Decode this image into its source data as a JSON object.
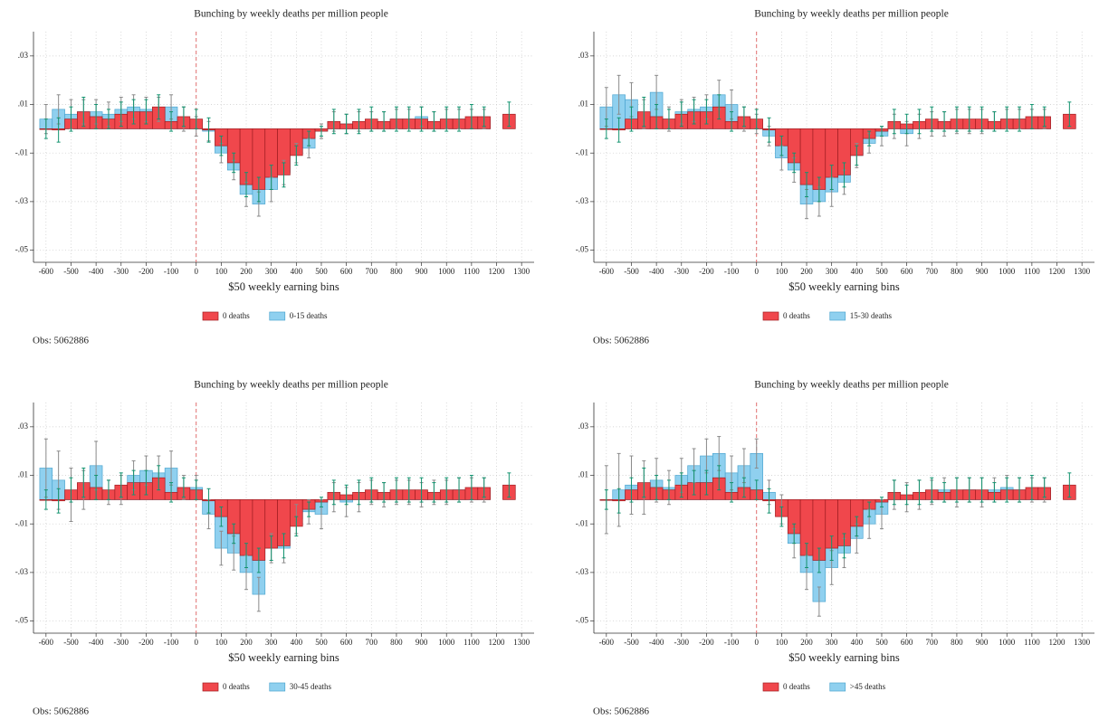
{
  "chart_data": [
    {
      "type": "bar",
      "title": "Bunching by weekly deaths per million people",
      "xlabel": "$50 weekly earning bins",
      "note": "Obs: 5062886",
      "x": [
        -600,
        -550,
        -500,
        -450,
        -400,
        -350,
        -300,
        -250,
        -200,
        -150,
        -100,
        -50,
        0,
        50,
        100,
        150,
        200,
        250,
        300,
        350,
        400,
        450,
        500,
        550,
        600,
        650,
        700,
        750,
        800,
        850,
        900,
        950,
        1000,
        1050,
        1100,
        1150,
        1250
      ],
      "series": [
        {
          "name": "0 deaths",
          "color": "#f0474c",
          "stroke": "#a01e22",
          "error_color": "#12936f",
          "values": [
            0,
            -0.0005,
            0.004,
            0.007,
            0.005,
            0.004,
            0.006,
            0.007,
            0.007,
            0.009,
            0.003,
            0.005,
            0.004,
            -0.0005,
            -0.007,
            -0.014,
            -0.023,
            -0.025,
            -0.02,
            -0.019,
            -0.011,
            -0.004,
            -0.001,
            0.003,
            0.002,
            0.003,
            0.004,
            0.003,
            0.004,
            0.004,
            0.004,
            0.003,
            0.004,
            0.004,
            0.005,
            0.005,
            0.006
          ],
          "errors": [
            0.004,
            0.005,
            0.005,
            0.006,
            0.005,
            0.004,
            0.005,
            0.005,
            0.005,
            0.005,
            0.004,
            0.004,
            0.004,
            0.005,
            0.004,
            0.004,
            0.005,
            0.005,
            0.005,
            0.005,
            0.004,
            0.003,
            0.002,
            0.005,
            0.004,
            0.005,
            0.005,
            0.004,
            0.005,
            0.005,
            0.005,
            0.004,
            0.005,
            0.005,
            0.005,
            0.004,
            0.005
          ]
        },
        {
          "name": "0-15 deaths",
          "color": "#8fd0ef",
          "stroke": "#4ea6d0",
          "error_color": "#8a8a8a",
          "values": [
            0.004,
            0.008,
            0.006,
            0.007,
            0.007,
            0.006,
            0.008,
            0.009,
            0.008,
            0.008,
            0.009,
            0.004,
            0.001,
            -0.001,
            -0.01,
            -0.017,
            -0.027,
            -0.031,
            -0.025,
            -0.018,
            -0.01,
            -0.008,
            -0.001,
            0.003,
            0.002,
            0.003,
            0.003,
            0.003,
            0.004,
            0.004,
            0.005,
            0.003,
            0.004,
            0.004,
            0.004,
            0.004,
            null
          ],
          "errors": [
            0.006,
            0.006,
            0.006,
            0.005,
            0.005,
            0.005,
            0.005,
            0.005,
            0.005,
            0.005,
            0.005,
            0.005,
            0.004,
            0.004,
            0.004,
            0.004,
            0.005,
            0.005,
            0.005,
            0.005,
            0.004,
            0.004,
            0.003,
            0.004,
            0.004,
            0.004,
            0.004,
            0.004,
            0.004,
            0.004,
            0.004,
            0.004,
            0.004,
            0.004,
            0.004,
            0.004,
            null
          ]
        }
      ],
      "xlim": [
        -650,
        1350
      ],
      "ylim": [
        -0.055,
        0.04
      ],
      "xticks": [
        -600,
        -500,
        -400,
        -300,
        -200,
        -100,
        0,
        100,
        200,
        300,
        400,
        500,
        600,
        700,
        800,
        900,
        1000,
        1100,
        1200,
        1300
      ],
      "yticks": [
        {
          "value": 0.03,
          "label": ".03"
        },
        {
          "value": 0.01,
          "label": ".01"
        },
        {
          "value": -0.01,
          "label": "-.01"
        },
        {
          "value": -0.03,
          "label": "-.03"
        },
        {
          "value": -0.05,
          "label": "-.05"
        }
      ],
      "grid": true,
      "reference_line": 0
    },
    {
      "type": "bar",
      "title": "Bunching by weekly deaths per million people",
      "xlabel": "$50 weekly earning bins",
      "note": "Obs: 5062886",
      "x": [
        -600,
        -550,
        -500,
        -450,
        -400,
        -350,
        -300,
        -250,
        -200,
        -150,
        -100,
        -50,
        0,
        50,
        100,
        150,
        200,
        250,
        300,
        350,
        400,
        450,
        500,
        550,
        600,
        650,
        700,
        750,
        800,
        850,
        900,
        950,
        1000,
        1050,
        1100,
        1150,
        1250
      ],
      "series": [
        {
          "name": "0 deaths",
          "color": "#f0474c",
          "stroke": "#a01e22",
          "error_color": "#12936f",
          "values": [
            0,
            -0.0005,
            0.004,
            0.007,
            0.005,
            0.004,
            0.006,
            0.007,
            0.007,
            0.009,
            0.003,
            0.005,
            0.004,
            -0.0005,
            -0.007,
            -0.014,
            -0.023,
            -0.025,
            -0.02,
            -0.019,
            -0.011,
            -0.004,
            -0.001,
            0.003,
            0.002,
            0.003,
            0.004,
            0.003,
            0.004,
            0.004,
            0.004,
            0.003,
            0.004,
            0.004,
            0.005,
            0.005,
            0.006
          ],
          "errors": [
            0.004,
            0.005,
            0.005,
            0.006,
            0.005,
            0.004,
            0.005,
            0.005,
            0.005,
            0.005,
            0.004,
            0.004,
            0.004,
            0.005,
            0.004,
            0.004,
            0.005,
            0.005,
            0.005,
            0.005,
            0.004,
            0.003,
            0.002,
            0.005,
            0.004,
            0.005,
            0.005,
            0.004,
            0.005,
            0.005,
            0.005,
            0.004,
            0.005,
            0.005,
            0.005,
            0.004,
            0.005
          ]
        },
        {
          "name": "15-30 deaths",
          "color": "#8fd0ef",
          "stroke": "#4ea6d0",
          "error_color": "#8a8a8a",
          "values": [
            0.009,
            0.014,
            0.012,
            0.006,
            0.015,
            0.004,
            0.007,
            0.008,
            0.009,
            0.014,
            0.01,
            0.004,
            0.002,
            -0.003,
            -0.012,
            -0.017,
            -0.031,
            -0.03,
            -0.026,
            -0.022,
            -0.011,
            -0.006,
            -0.003,
            0.001,
            -0.002,
            0.001,
            0.002,
            0.002,
            0.003,
            0.003,
            0.003,
            0.003,
            0.004,
            0.004,
            0.004,
            0.004,
            null
          ],
          "errors": [
            0.008,
            0.008,
            0.007,
            0.006,
            0.007,
            0.005,
            0.005,
            0.005,
            0.005,
            0.006,
            0.006,
            0.005,
            0.004,
            0.004,
            0.005,
            0.005,
            0.006,
            0.006,
            0.006,
            0.005,
            0.005,
            0.004,
            0.004,
            0.005,
            0.005,
            0.005,
            0.005,
            0.005,
            0.005,
            0.005,
            0.005,
            0.004,
            0.004,
            0.004,
            0.004,
            0.004,
            null
          ]
        }
      ],
      "xlim": [
        -650,
        1350
      ],
      "ylim": [
        -0.055,
        0.04
      ],
      "xticks": [
        -600,
        -500,
        -400,
        -300,
        -200,
        -100,
        0,
        100,
        200,
        300,
        400,
        500,
        600,
        700,
        800,
        900,
        1000,
        1100,
        1200,
        1300
      ],
      "yticks": [
        {
          "value": 0.03,
          "label": ".03"
        },
        {
          "value": 0.01,
          "label": ".01"
        },
        {
          "value": -0.01,
          "label": "-.01"
        },
        {
          "value": -0.03,
          "label": "-.03"
        },
        {
          "value": -0.05,
          "label": "-.05"
        }
      ],
      "grid": true,
      "reference_line": 0
    },
    {
      "type": "bar",
      "title": "Bunching by weekly deaths per million people",
      "xlabel": "$50 weekly earning bins",
      "note": "Obs: 5062886",
      "x": [
        -600,
        -550,
        -500,
        -450,
        -400,
        -350,
        -300,
        -250,
        -200,
        -150,
        -100,
        -50,
        0,
        50,
        100,
        150,
        200,
        250,
        300,
        350,
        400,
        450,
        500,
        550,
        600,
        650,
        700,
        750,
        800,
        850,
        900,
        950,
        1000,
        1050,
        1100,
        1150,
        1250
      ],
      "series": [
        {
          "name": "0 deaths",
          "color": "#f0474c",
          "stroke": "#a01e22",
          "error_color": "#12936f",
          "values": [
            0,
            -0.0005,
            0.004,
            0.007,
            0.005,
            0.004,
            0.006,
            0.007,
            0.007,
            0.009,
            0.003,
            0.005,
            0.004,
            -0.0005,
            -0.007,
            -0.014,
            -0.023,
            -0.025,
            -0.02,
            -0.019,
            -0.011,
            -0.004,
            -0.001,
            0.003,
            0.002,
            0.003,
            0.004,
            0.003,
            0.004,
            0.004,
            0.004,
            0.003,
            0.004,
            0.004,
            0.005,
            0.005,
            0.006
          ],
          "errors": [
            0.004,
            0.005,
            0.005,
            0.006,
            0.005,
            0.004,
            0.005,
            0.005,
            0.005,
            0.005,
            0.004,
            0.004,
            0.004,
            0.005,
            0.004,
            0.004,
            0.005,
            0.005,
            0.005,
            0.005,
            0.004,
            0.003,
            0.002,
            0.005,
            0.004,
            0.005,
            0.005,
            0.004,
            0.005,
            0.005,
            0.005,
            0.004,
            0.005,
            0.005,
            0.005,
            0.004,
            0.005
          ]
        },
        {
          "name": "30-45 deaths",
          "color": "#8fd0ef",
          "stroke": "#4ea6d0",
          "error_color": "#8a8a8a",
          "values": [
            0.013,
            0.008,
            0.002,
            0.004,
            0.014,
            0.003,
            0.004,
            0.01,
            0.012,
            0.011,
            0.013,
            0.005,
            0.005,
            -0.006,
            -0.02,
            -0.022,
            -0.03,
            -0.039,
            -0.02,
            -0.02,
            -0.008,
            -0.005,
            -0.006,
            0.001,
            -0.001,
            0.001,
            0.003,
            0.002,
            0.003,
            0.003,
            0.002,
            0.003,
            0.003,
            0.004,
            0.004,
            0.004,
            null
          ],
          "errors": [
            0.012,
            0.012,
            0.011,
            0.008,
            0.01,
            0.005,
            0.006,
            0.006,
            0.006,
            0.007,
            0.007,
            0.005,
            0.005,
            0.006,
            0.007,
            0.007,
            0.007,
            0.007,
            0.006,
            0.006,
            0.006,
            0.005,
            0.006,
            0.006,
            0.006,
            0.006,
            0.005,
            0.005,
            0.005,
            0.005,
            0.005,
            0.005,
            0.005,
            0.005,
            0.005,
            0.005,
            null
          ]
        }
      ],
      "xlim": [
        -650,
        1350
      ],
      "ylim": [
        -0.055,
        0.04
      ],
      "xticks": [
        -600,
        -500,
        -400,
        -300,
        -200,
        -100,
        0,
        100,
        200,
        300,
        400,
        500,
        600,
        700,
        800,
        900,
        1000,
        1100,
        1200,
        1300
      ],
      "yticks": [
        {
          "value": 0.03,
          "label": ".03"
        },
        {
          "value": 0.01,
          "label": ".01"
        },
        {
          "value": -0.01,
          "label": "-.01"
        },
        {
          "value": -0.03,
          "label": "-.03"
        },
        {
          "value": -0.05,
          "label": "-.05"
        }
      ],
      "grid": true,
      "reference_line": 0
    },
    {
      "type": "bar",
      "title": "Bunching by weekly deaths per million people",
      "xlabel": "$50 weekly earning bins",
      "note": "Obs: 5062886",
      "x": [
        -600,
        -550,
        -500,
        -450,
        -400,
        -350,
        -300,
        -250,
        -200,
        -150,
        -100,
        -50,
        0,
        50,
        100,
        150,
        200,
        250,
        300,
        350,
        400,
        450,
        500,
        550,
        600,
        650,
        700,
        750,
        800,
        850,
        900,
        950,
        1000,
        1050,
        1100,
        1150,
        1250
      ],
      "series": [
        {
          "name": "0 deaths",
          "color": "#f0474c",
          "stroke": "#a01e22",
          "error_color": "#12936f",
          "values": [
            0,
            -0.0005,
            0.004,
            0.007,
            0.005,
            0.004,
            0.006,
            0.007,
            0.007,
            0.009,
            0.003,
            0.005,
            0.004,
            -0.0005,
            -0.007,
            -0.014,
            -0.023,
            -0.025,
            -0.02,
            -0.019,
            -0.011,
            -0.004,
            -0.001,
            0.003,
            0.002,
            0.003,
            0.004,
            0.003,
            0.004,
            0.004,
            0.004,
            0.003,
            0.004,
            0.004,
            0.005,
            0.005,
            0.006
          ],
          "errors": [
            0.004,
            0.005,
            0.005,
            0.006,
            0.005,
            0.004,
            0.005,
            0.005,
            0.005,
            0.005,
            0.004,
            0.004,
            0.004,
            0.005,
            0.004,
            0.004,
            0.005,
            0.005,
            0.005,
            0.005,
            0.004,
            0.003,
            0.002,
            0.005,
            0.004,
            0.005,
            0.005,
            0.004,
            0.005,
            0.005,
            0.005,
            0.004,
            0.005,
            0.005,
            0.005,
            0.004,
            0.005
          ]
        },
        {
          "name": ">45 deaths",
          "color": "#8fd0ef",
          "stroke": "#4ea6d0",
          "error_color": "#8a8a8a",
          "values": [
            0,
            0.004,
            0.006,
            0.005,
            0.008,
            0.005,
            0.01,
            0.014,
            0.018,
            0.019,
            0.011,
            0.014,
            0.019,
            0.003,
            -0.004,
            -0.018,
            -0.03,
            -0.042,
            -0.028,
            -0.022,
            -0.016,
            -0.01,
            -0.006,
            0.002,
            0.001,
            0.002,
            0.003,
            0.004,
            0.003,
            0.004,
            0.003,
            0.004,
            0.005,
            0.004,
            0.004,
            0.004,
            null
          ],
          "errors": [
            0.014,
            0.015,
            0.012,
            0.011,
            0.009,
            0.007,
            0.007,
            0.007,
            0.007,
            0.007,
            0.007,
            0.007,
            0.006,
            0.005,
            0.006,
            0.006,
            0.007,
            0.006,
            0.007,
            0.006,
            0.006,
            0.006,
            0.006,
            0.006,
            0.006,
            0.006,
            0.005,
            0.005,
            0.006,
            0.005,
            0.006,
            0.005,
            0.005,
            0.005,
            0.005,
            0.005,
            null
          ]
        }
      ],
      "xlim": [
        -650,
        1350
      ],
      "ylim": [
        -0.055,
        0.04
      ],
      "xticks": [
        -600,
        -500,
        -400,
        -300,
        -200,
        -100,
        0,
        100,
        200,
        300,
        400,
        500,
        600,
        700,
        800,
        900,
        1000,
        1100,
        1200,
        1300
      ],
      "yticks": [
        {
          "value": 0.03,
          "label": ".03"
        },
        {
          "value": 0.01,
          "label": ".01"
        },
        {
          "value": -0.01,
          "label": "-.01"
        },
        {
          "value": -0.03,
          "label": "-.03"
        },
        {
          "value": -0.05,
          "label": "-.05"
        }
      ],
      "grid": true,
      "reference_line": 0
    }
  ]
}
